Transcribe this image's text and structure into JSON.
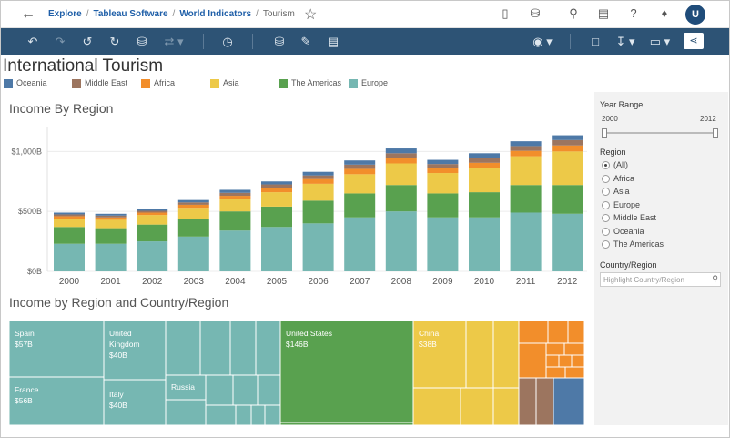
{
  "breadcrumb": [
    "Explore",
    "Tableau Software",
    "World Indicators"
  ],
  "breadcrumb_current": "Tourism",
  "user_initial": "U",
  "dashboard_title": "International Tourism",
  "legend": [
    {
      "name": "Oceania",
      "color": "#4e79a7"
    },
    {
      "name": "Middle East",
      "color": "#9c755f"
    },
    {
      "name": "Africa",
      "color": "#f28e2b"
    },
    {
      "name": "Asia",
      "color": "#edc948"
    },
    {
      "name": "The Americas",
      "color": "#59a14f"
    },
    {
      "name": "Europe",
      "color": "#76b7b2"
    }
  ],
  "bar_title": "Income By Region",
  "tree_title": "Income by Region and Country/Region",
  "chart_data": [
    {
      "type": "bar",
      "title": "Income By Region",
      "categories": [
        "2000",
        "2001",
        "2002",
        "2003",
        "2004",
        "2005",
        "2006",
        "2007",
        "2008",
        "2009",
        "2010",
        "2011",
        "2012"
      ],
      "y_ticks": [
        "$0B",
        "$500B",
        "$1,000B"
      ],
      "ylim": [
        0,
        1200
      ],
      "grid": true,
      "series": [
        {
          "name": "Europe",
          "color": "#76b7b2",
          "values": [
            230,
            230,
            250,
            290,
            340,
            370,
            400,
            450,
            500,
            450,
            450,
            490,
            480
          ]
        },
        {
          "name": "The Americas",
          "color": "#59a14f",
          "values": [
            140,
            130,
            140,
            150,
            160,
            170,
            190,
            200,
            220,
            200,
            210,
            230,
            240
          ]
        },
        {
          "name": "Asia",
          "color": "#edc948",
          "values": [
            70,
            70,
            80,
            90,
            100,
            120,
            140,
            160,
            180,
            170,
            200,
            240,
            280
          ]
        },
        {
          "name": "Africa",
          "color": "#f28e2b",
          "values": [
            20,
            20,
            20,
            25,
            30,
            35,
            40,
            45,
            45,
            40,
            45,
            45,
            50
          ]
        },
        {
          "name": "Middle East",
          "color": "#9c755f",
          "values": [
            15,
            15,
            15,
            20,
            25,
            30,
            30,
            35,
            40,
            35,
            40,
            40,
            45
          ]
        },
        {
          "name": "Oceania",
          "color": "#4e79a7",
          "values": [
            15,
            15,
            15,
            20,
            25,
            25,
            30,
            35,
            40,
            35,
            40,
            40,
            40
          ]
        }
      ]
    },
    {
      "type": "treemap",
      "title": "Income by Region and Country/Region",
      "labeled_cells": [
        {
          "name": "Spain",
          "value": "$57B",
          "region": "Europe"
        },
        {
          "name": "France",
          "value": "$56B",
          "region": "Europe"
        },
        {
          "name": "United Kingdom",
          "value": "$40B",
          "region": "Europe"
        },
        {
          "name": "Italy",
          "value": "$40B",
          "region": "Europe"
        },
        {
          "name": "Russia",
          "value": "",
          "region": "Europe"
        },
        {
          "name": "United States",
          "value": "$146B",
          "region": "The Americas"
        },
        {
          "name": "China",
          "value": "$38B",
          "region": "Asia"
        }
      ]
    }
  ],
  "filters": {
    "year_label": "Year Range",
    "year_min": "2000",
    "year_max": "2012",
    "region_label": "Region",
    "region_options": [
      "(All)",
      "Africa",
      "Asia",
      "Europe",
      "Middle East",
      "Oceania",
      "The Americas"
    ],
    "region_selected": "(All)",
    "country_label": "Country/Region",
    "country_placeholder": "Highlight Country/Region"
  }
}
